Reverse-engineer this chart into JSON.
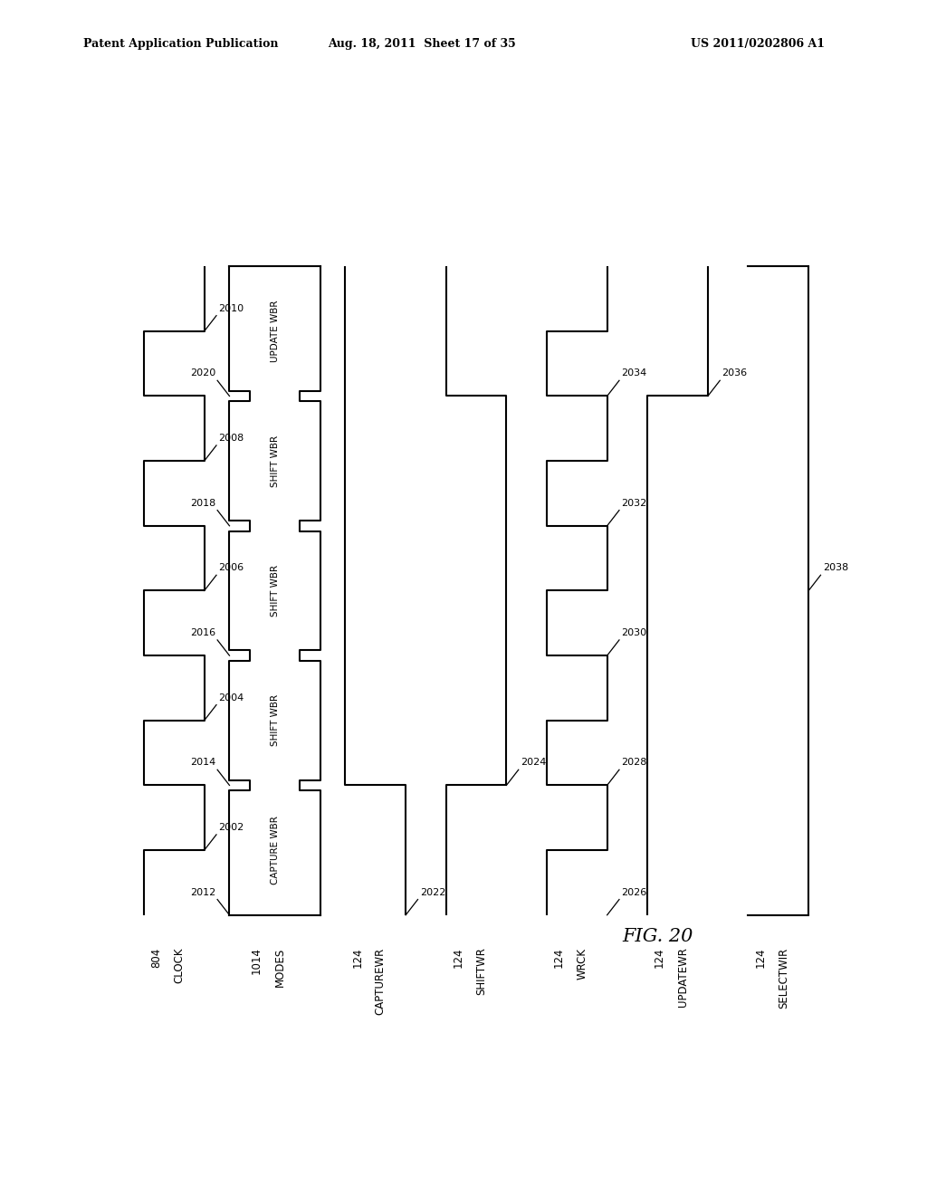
{
  "header_left": "Patent Application Publication",
  "header_mid": "Aug. 18, 2011  Sheet 17 of 35",
  "header_right": "US 2011/0202806 A1",
  "fig_label": "FIG. 20",
  "background": "#ffffff",
  "line_color": "#000000",
  "n_cycles": 5,
  "signals": [
    {
      "name": "CLOCK",
      "ref": "804",
      "key": "clock"
    },
    {
      "name": "MODES",
      "ref": "1014",
      "key": "modes"
    },
    {
      "name": "CAPTUREWR",
      "ref": "124",
      "key": "capturewr"
    },
    {
      "name": "SHIFTWR",
      "ref": "124",
      "key": "shiftwr"
    },
    {
      "name": "WRCK",
      "ref": "124",
      "key": "wrck"
    },
    {
      "name": "UPDATEWR",
      "ref": "124",
      "key": "updatewr"
    },
    {
      "name": "SELECTWIR",
      "ref": "124",
      "key": "selectwir"
    }
  ],
  "modes_texts": [
    "CAPTURE WBR",
    "SHIFT WBR",
    "SHIFT WBR",
    "SHIFT WBR",
    "UPDATE WBR"
  ],
  "clock_top_labels": [
    "2002",
    "2004",
    "2006",
    "2008",
    "2010"
  ],
  "modes_bot_labels": [
    "2012",
    "2014",
    "2016",
    "2018",
    "2020"
  ],
  "capturewr_label": "2022",
  "shiftwr_label": "2024",
  "wrck_labels": [
    "2026",
    "2028",
    "2030",
    "2032",
    "2034"
  ],
  "updatewr_label": "2036",
  "selectwir_label": "2038"
}
